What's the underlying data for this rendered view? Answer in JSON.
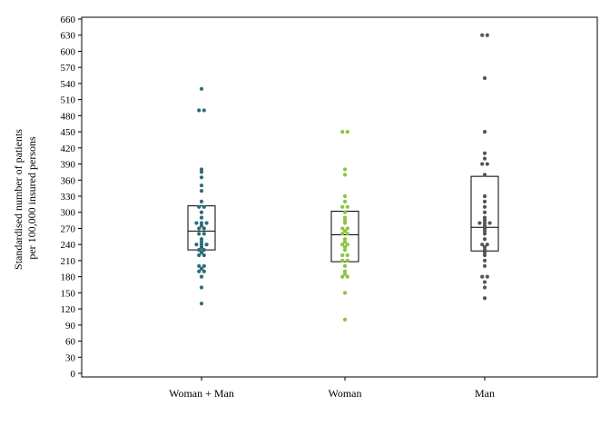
{
  "chart_data": {
    "type": "scatter",
    "subtype": "dot-strip-with-boxplot",
    "title": "",
    "xlabel": "",
    "ylabel_lines": [
      "Standardised number of patients",
      "per 100,000 insured persons"
    ],
    "ylim": [
      0,
      660
    ],
    "yticks": [
      0,
      30,
      60,
      90,
      120,
      150,
      180,
      210,
      240,
      270,
      300,
      330,
      360,
      390,
      420,
      450,
      480,
      510,
      540,
      570,
      600,
      630,
      660
    ],
    "grid": false,
    "legend": "none",
    "categories": [
      "Woman + Man",
      "Woman",
      "Man"
    ],
    "series": [
      {
        "category": "Woman + Man",
        "color": "#2e6b78",
        "box": {
          "q1": 230,
          "median": 265,
          "q3": 312
        },
        "values": [
          530,
          490,
          490,
          380,
          375,
          365,
          350,
          340,
          320,
          310,
          310,
          300,
          290,
          280,
          280,
          280,
          275,
          270,
          270,
          260,
          260,
          250,
          245,
          240,
          240,
          240,
          235,
          230,
          230,
          225,
          220,
          220,
          200,
          200,
          195,
          190,
          190,
          180,
          160,
          130
        ]
      },
      {
        "category": "Woman",
        "color": "#8cc43c",
        "box": {
          "q1": 208,
          "median": 258,
          "q3": 302
        },
        "values": [
          450,
          450,
          380,
          370,
          330,
          320,
          310,
          310,
          300,
          290,
          285,
          280,
          270,
          270,
          265,
          260,
          260,
          250,
          245,
          240,
          240,
          235,
          230,
          220,
          220,
          210,
          210,
          200,
          190,
          185,
          180,
          180,
          150,
          100
        ]
      },
      {
        "category": "Man",
        "color": "#555555",
        "box": {
          "q1": 228,
          "median": 272,
          "q3": 367
        },
        "values": [
          630,
          630,
          550,
          450,
          410,
          400,
          390,
          390,
          370,
          330,
          320,
          310,
          300,
          290,
          285,
          280,
          280,
          280,
          275,
          270,
          265,
          260,
          250,
          240,
          240,
          235,
          230,
          225,
          220,
          210,
          200,
          180,
          180,
          170,
          160,
          140
        ]
      }
    ]
  }
}
